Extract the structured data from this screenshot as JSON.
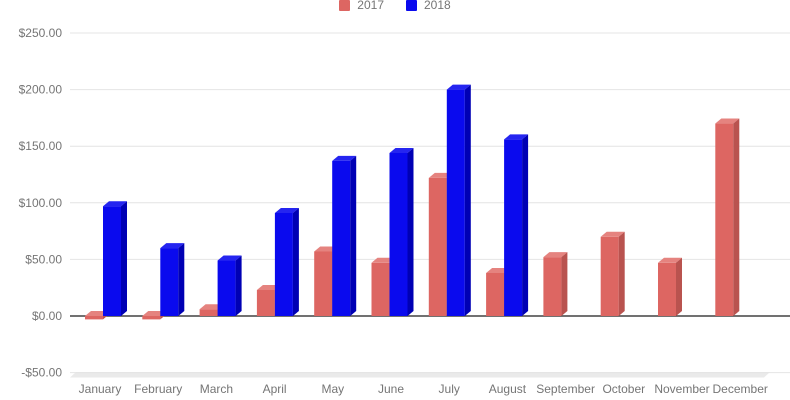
{
  "chart_data": {
    "type": "bar",
    "style": "3d-column",
    "title": "",
    "xlabel": "",
    "ylabel": "",
    "legend_position": "top",
    "grid": true,
    "ylim": [
      -50,
      250
    ],
    "categories": [
      "January",
      "February",
      "March",
      "April",
      "May",
      "June",
      "July",
      "August",
      "September",
      "October",
      "November",
      "December"
    ],
    "series": [
      {
        "name": "2017",
        "color": "#DD6662",
        "color_top": "#E5837F",
        "color_side": "#B9534F",
        "values": [
          -3,
          -3,
          6,
          23,
          57,
          47,
          122,
          38,
          52,
          70,
          47,
          170
        ]
      },
      {
        "name": "2018",
        "color": "#0A0AEE",
        "color_top": "#2525F0",
        "color_side": "#0000B4",
        "values": [
          97,
          60,
          49,
          91,
          137,
          144,
          200,
          156,
          null,
          null,
          null,
          null
        ]
      }
    ],
    "yticks": [
      {
        "label": "$250.00",
        "value": 250
      },
      {
        "label": "$200.00",
        "value": 200
      },
      {
        "label": "$150.00",
        "value": 150
      },
      {
        "label": "$100.00",
        "value": 100
      },
      {
        "label": "$50.00",
        "value": 50
      },
      {
        "label": "$0.00",
        "value": 0
      },
      {
        "label": "-$50.00",
        "value": -50
      }
    ],
    "colors": {
      "grid": "#E4E4E4",
      "zero_axis": "#424242",
      "axis_text": "#757575",
      "floor": "#EAEAEA",
      "background": "#FFFFFF"
    }
  }
}
